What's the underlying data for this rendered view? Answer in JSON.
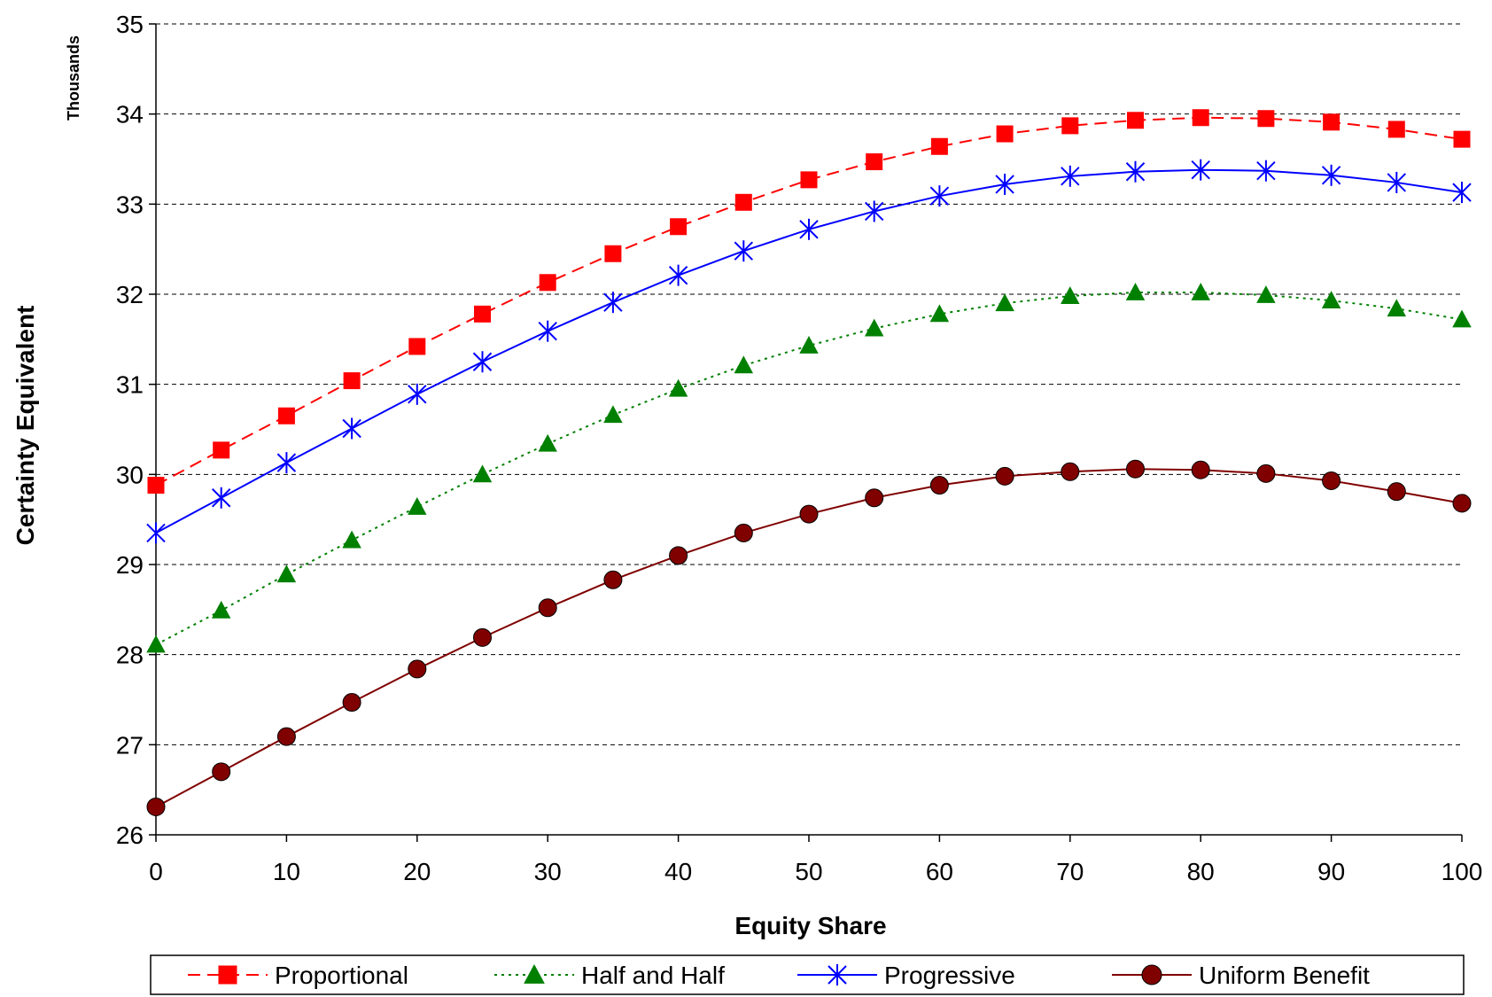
{
  "chart_data": {
    "type": "line",
    "xlabel": "Equity Share",
    "ylabel": "Certainty Equivalent",
    "y_units_label": "Thousands",
    "x_ticks": [
      "0",
      "10",
      "20",
      "30",
      "40",
      "50",
      "60",
      "70",
      "80",
      "90",
      "100"
    ],
    "y_ticks": [
      "26",
      "27",
      "28",
      "29",
      "30",
      "31",
      "32",
      "33",
      "34",
      "35"
    ],
    "xlim": [
      0,
      100
    ],
    "ylim": [
      26,
      35
    ],
    "grid": "horizontal dashed",
    "legend_position": "bottom",
    "x": [
      0,
      5,
      10,
      15,
      20,
      25,
      30,
      35,
      40,
      45,
      50,
      55,
      60,
      65,
      70,
      75,
      80,
      85,
      90,
      95,
      100
    ],
    "series": [
      {
        "name": "Proportional",
        "color": "#FF0000",
        "line_style": "dashed",
        "marker": "square",
        "values": [
          29.88,
          30.27,
          30.65,
          31.04,
          31.42,
          31.78,
          32.13,
          32.45,
          32.75,
          33.02,
          33.27,
          33.47,
          33.64,
          33.78,
          33.87,
          33.93,
          33.96,
          33.95,
          33.91,
          33.83,
          33.72
        ]
      },
      {
        "name": "Half and Half",
        "color": "#008000",
        "line_style": "dotted",
        "marker": "triangle",
        "values": [
          28.11,
          28.49,
          28.89,
          29.27,
          29.64,
          30.0,
          30.34,
          30.66,
          30.95,
          31.21,
          31.43,
          31.62,
          31.78,
          31.9,
          31.98,
          32.02,
          32.02,
          31.99,
          31.93,
          31.84,
          31.72
        ]
      },
      {
        "name": "Progressive",
        "color": "#0000FF",
        "line_style": "solid",
        "marker": "asterisk",
        "values": [
          29.35,
          29.74,
          30.13,
          30.51,
          30.89,
          31.25,
          31.59,
          31.91,
          32.21,
          32.48,
          32.72,
          32.92,
          33.09,
          33.22,
          33.31,
          33.36,
          33.38,
          33.37,
          33.32,
          33.24,
          33.13
        ]
      },
      {
        "name": "Uniform Benefit",
        "color": "#800000",
        "line_style": "solid",
        "marker": "circle",
        "values": [
          26.31,
          26.7,
          27.09,
          27.47,
          27.84,
          28.19,
          28.52,
          28.83,
          29.1,
          29.35,
          29.56,
          29.74,
          29.88,
          29.98,
          30.03,
          30.06,
          30.05,
          30.01,
          29.93,
          29.81,
          29.68
        ]
      }
    ]
  }
}
